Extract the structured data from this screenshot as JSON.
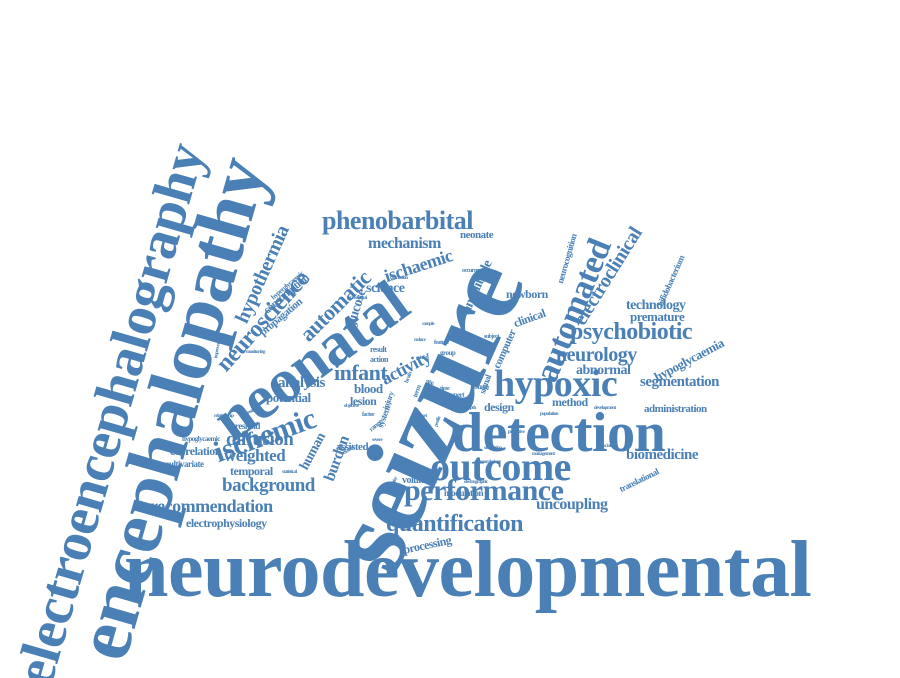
{
  "style": {
    "word_color": "#4a80b5",
    "background": "#ffffff"
  },
  "words": [
    {
      "id": "neurodevelopmental",
      "text": "neurodevelopmental"
    },
    {
      "id": "electroencephalography",
      "text": "electroencephalography"
    },
    {
      "id": "encephalopathy",
      "text": "encephalopathy"
    },
    {
      "id": "seizure",
      "text": "seizure"
    },
    {
      "id": "neonatal",
      "text": "neonatal"
    },
    {
      "id": "detection",
      "text": "detection"
    },
    {
      "id": "outcome",
      "text": "outcome"
    },
    {
      "id": "hypoxic",
      "text": "hypoxic"
    },
    {
      "id": "automated",
      "text": "automated"
    },
    {
      "id": "performance",
      "text": "performance"
    },
    {
      "id": "phenobarbital",
      "text": "phenobarbital"
    },
    {
      "id": "ischemic",
      "text": "ischemic"
    },
    {
      "id": "quantification",
      "text": "quantification"
    },
    {
      "id": "psychobiotic",
      "text": "psychobiotic"
    },
    {
      "id": "neuroscience",
      "text": "neuroscience"
    },
    {
      "id": "automatic",
      "text": "automatic"
    },
    {
      "id": "hypothermia",
      "text": "hypothermia"
    },
    {
      "id": "electroclinical",
      "text": "electroclinical"
    },
    {
      "id": "infant",
      "text": "infant"
    },
    {
      "id": "neurology",
      "text": "neurology"
    },
    {
      "id": "diffusion",
      "text": "diffusion"
    },
    {
      "id": "recommendation",
      "text": "recommendation"
    },
    {
      "id": "background",
      "text": "background"
    },
    {
      "id": "weighted",
      "text": "weighted"
    },
    {
      "id": "segmentation",
      "text": "segmentation"
    },
    {
      "id": "uncoupling",
      "text": "uncoupling"
    },
    {
      "id": "biomedicine",
      "text": "biomedicine"
    },
    {
      "id": "ischaemic",
      "text": "ischaemic"
    },
    {
      "id": "mechanism",
      "text": "mechanism"
    },
    {
      "id": "electrophysiology",
      "text": "electrophysiology"
    },
    {
      "id": "activity",
      "text": "activity"
    },
    {
      "id": "hypoglycaemia",
      "text": "hypoglycaemia"
    },
    {
      "id": "technology",
      "text": "technology"
    },
    {
      "id": "premature",
      "text": "premature"
    },
    {
      "id": "abnormal",
      "text": "abnormal"
    },
    {
      "id": "administration",
      "text": "administration"
    },
    {
      "id": "analysis",
      "text": "analysis"
    },
    {
      "id": "potential",
      "text": "potential"
    },
    {
      "id": "correlation",
      "text": "correlation"
    },
    {
      "id": "temporal",
      "text": "temporal"
    },
    {
      "id": "science",
      "text": "science"
    },
    {
      "id": "glucose",
      "text": "glucose"
    },
    {
      "id": "amplitude",
      "text": "amplitude"
    },
    {
      "id": "burden",
      "text": "burden"
    },
    {
      "id": "human",
      "text": "human"
    },
    {
      "id": "newborn",
      "text": "newborn"
    },
    {
      "id": "neonate",
      "text": "neonate"
    },
    {
      "id": "method",
      "text": "method"
    },
    {
      "id": "blood",
      "text": "blood"
    },
    {
      "id": "lesion",
      "text": "lesion"
    },
    {
      "id": "processing",
      "text": "processing"
    },
    {
      "id": "design",
      "text": "design"
    },
    {
      "id": "computer",
      "text": "computer"
    },
    {
      "id": "clinical",
      "text": "clinical"
    },
    {
      "id": "consumption",
      "text": "consumption"
    },
    {
      "id": "propagation",
      "text": "propagation"
    },
    {
      "id": "volunteer",
      "text": "volunteer"
    },
    {
      "id": "assisted",
      "text": "assisted"
    },
    {
      "id": "threshold",
      "text": "threshold"
    },
    {
      "id": "multivariate",
      "text": "multivariate"
    },
    {
      "id": "modulation",
      "text": "modulation"
    },
    {
      "id": "neurocognition",
      "text": "neurocognition"
    },
    {
      "id": "bifidobacterium",
      "text": "bifidobacterium"
    },
    {
      "id": "translational",
      "text": "translational"
    },
    {
      "id": "hyperglycaemic",
      "text": "hyperglycaemic"
    },
    {
      "id": "hypoglycaemic",
      "text": "hypoglycaemic"
    },
    {
      "id": "system",
      "text": "system"
    },
    {
      "id": "signal",
      "text": "signal"
    },
    {
      "id": "action",
      "text": "action"
    },
    {
      "id": "result",
      "text": "result"
    },
    {
      "id": "expert",
      "text": "expert"
    },
    {
      "id": "burst",
      "text": "burst"
    },
    {
      "id": "trial",
      "text": "trial"
    },
    {
      "id": "group",
      "text": "group"
    },
    {
      "id": "feature",
      "text": "feature"
    },
    {
      "id": "subject",
      "text": "subject"
    },
    {
      "id": "occurrence",
      "text": "occurrence"
    },
    {
      "id": "conclusion",
      "text": "conclusion"
    },
    {
      "id": "preclinical",
      "text": "preclinical"
    },
    {
      "id": "sample",
      "text": "sample"
    },
    {
      "id": "injury",
      "text": "injury"
    },
    {
      "id": "factor",
      "text": "factor"
    },
    {
      "id": "range",
      "text": "range"
    },
    {
      "id": "related",
      "text": "related"
    },
    {
      "id": "statistical",
      "text": "statistical"
    },
    {
      "id": "electrographic",
      "text": "electrographic"
    },
    {
      "id": "improvement",
      "text": "improvement"
    },
    {
      "id": "relationship",
      "text": "relationship"
    },
    {
      "id": "sensitivity",
      "text": "sensitivity"
    },
    {
      "id": "monitoring",
      "text": "monitoring"
    },
    {
      "id": "development",
      "text": "development"
    },
    {
      "id": "population",
      "text": "population"
    },
    {
      "id": "management",
      "text": "management"
    },
    {
      "id": "healthy",
      "text": "healthy"
    },
    {
      "id": "simulation",
      "text": "simulation"
    },
    {
      "id": "association",
      "text": "association"
    },
    {
      "id": "depth",
      "text": "depth"
    },
    {
      "id": "life",
      "text": "life"
    },
    {
      "id": "time",
      "text": "time"
    },
    {
      "id": "term",
      "text": "term"
    },
    {
      "id": "value",
      "text": "value"
    },
    {
      "id": "reduce",
      "text": "reduce"
    },
    {
      "id": "brain",
      "text": "brain"
    },
    {
      "id": "severe",
      "text": "severe"
    },
    {
      "id": "morphology",
      "text": "morphology"
    },
    {
      "id": "predictive",
      "text": "predictive"
    },
    {
      "id": "objective",
      "text": "objective"
    },
    {
      "id": "profile",
      "text": "profile"
    },
    {
      "id": "cohort",
      "text": "cohort"
    },
    {
      "id": "onset",
      "text": "onset"
    }
  ]
}
